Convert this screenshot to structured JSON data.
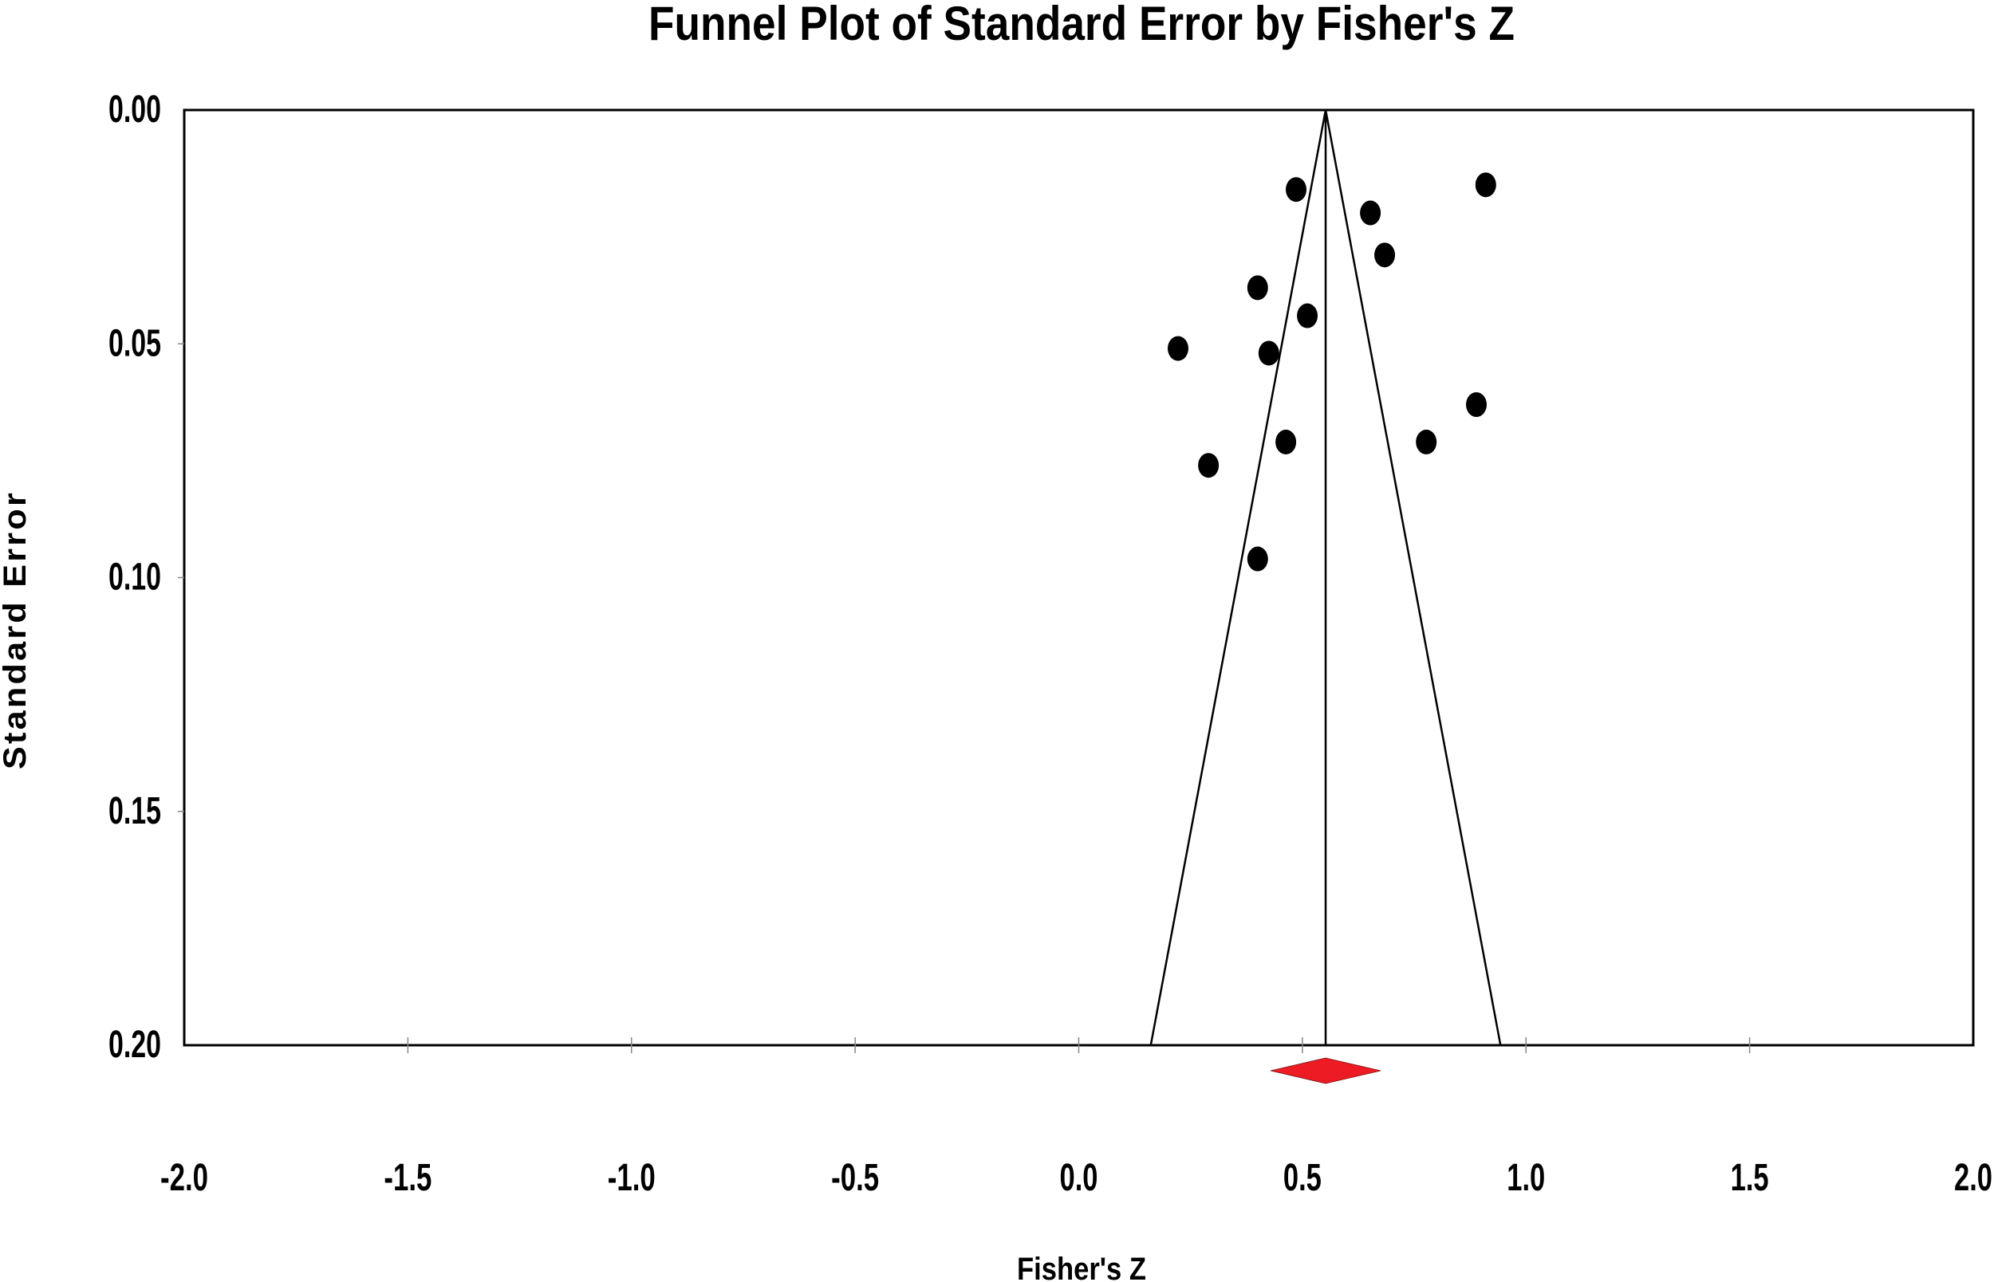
{
  "chart_data": {
    "type": "scatter",
    "subtype": "funnel_plot",
    "title": "Funnel Plot of Standard Error by Fisher's Z",
    "xlabel": "Fisher's Z",
    "ylabel": "Standard Error",
    "xlim": [
      -2.0,
      2.0
    ],
    "ylim": [
      0.2,
      0.0
    ],
    "y_inverted": true,
    "x_ticks": [
      "-2.0",
      "-1.5",
      "-1.0",
      "-0.5",
      "0.0",
      "0.5",
      "1.0",
      "1.5",
      "2.0"
    ],
    "y_ticks": [
      "0.00",
      "0.05",
      "0.10",
      "0.15",
      "0.20"
    ],
    "grid": false,
    "legend": null,
    "points": [
      {
        "z": 0.486,
        "se": 0.017
      },
      {
        "z": 0.652,
        "se": 0.022
      },
      {
        "z": 0.684,
        "se": 0.031
      },
      {
        "z": 0.91,
        "se": 0.016
      },
      {
        "z": 0.4,
        "se": 0.038
      },
      {
        "z": 0.511,
        "se": 0.044
      },
      {
        "z": 0.222,
        "se": 0.051
      },
      {
        "z": 0.425,
        "se": 0.052
      },
      {
        "z": 0.889,
        "se": 0.063
      },
      {
        "z": 0.463,
        "se": 0.071
      },
      {
        "z": 0.777,
        "se": 0.071
      },
      {
        "z": 0.29,
        "se": 0.076
      },
      {
        "z": 0.4,
        "se": 0.096
      }
    ],
    "pooled_effect": 0.552,
    "funnel": {
      "apex": [
        0.552,
        0.0
      ],
      "left_base": [
        0.161,
        0.2
      ],
      "right_base": [
        0.943,
        0.2
      ]
    },
    "summary_diamond": {
      "center": 0.552,
      "lower": 0.429,
      "upper": 0.675,
      "color": "#ED1C24"
    },
    "point_color": "#000000"
  }
}
